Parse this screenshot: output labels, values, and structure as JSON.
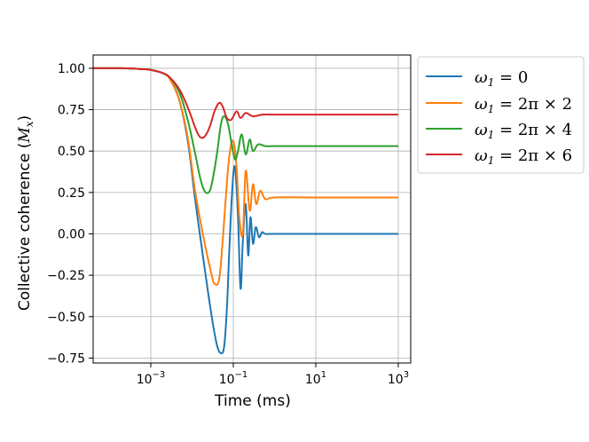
{
  "chart_data": {
    "type": "line",
    "xlabel": "Time (ms)",
    "ylabel": "Collective coherence (",
    "ylabel_var": "M",
    "ylabel_sub": "x",
    "ylabel_close": ")",
    "x_scale": "log",
    "xlim": [
      4e-05,
      2000
    ],
    "ylim": [
      -0.78,
      1.08
    ],
    "x_ticks": [
      {
        "value": 0.001,
        "base": "10",
        "exp": "−3"
      },
      {
        "value": 0.1,
        "base": "10",
        "exp": "−1"
      },
      {
        "value": 10,
        "base": "10",
        "exp": "1"
      },
      {
        "value": 1000,
        "base": "10",
        "exp": "3"
      }
    ],
    "y_ticks": [
      {
        "value": -0.75,
        "label": "−0.75"
      },
      {
        "value": -0.5,
        "label": "−0.50"
      },
      {
        "value": -0.25,
        "label": "−0.25"
      },
      {
        "value": 0.0,
        "label": "0.00"
      },
      {
        "value": 0.25,
        "label": "0.25"
      },
      {
        "value": 0.5,
        "label": "0.50"
      },
      {
        "value": 0.75,
        "label": "0.75"
      },
      {
        "value": 1.0,
        "label": "1.00"
      }
    ],
    "grid": true,
    "legend_position": "outside-top-right",
    "series": [
      {
        "legend_var": "ω",
        "legend_sub": "1",
        "legend_rest": " = 0",
        "color": "#1f77b4",
        "x": [
          4e-05,
          0.0002,
          0.0006,
          0.001,
          0.002,
          0.003,
          0.005,
          0.008,
          0.012,
          0.02,
          0.03,
          0.04,
          0.05,
          0.06,
          0.07,
          0.08,
          0.095,
          0.11,
          0.13,
          0.15,
          0.17,
          0.2,
          0.23,
          0.26,
          0.3,
          0.35,
          0.42,
          0.5,
          0.6,
          1,
          10,
          100,
          1000
        ],
        "y": [
          1.0,
          1.0,
          0.995,
          0.99,
          0.97,
          0.93,
          0.8,
          0.55,
          0.2,
          -0.2,
          -0.5,
          -0.67,
          -0.72,
          -0.68,
          -0.45,
          -0.1,
          0.28,
          0.4,
          0.1,
          -0.33,
          -0.05,
          0.18,
          -0.13,
          0.1,
          -0.06,
          0.04,
          -0.02,
          0.01,
          0.0,
          0.0,
          0.0,
          0.0,
          0.0
        ]
      },
      {
        "legend_var": "ω",
        "legend_sub": "1",
        "legend_rest": " = 2π × 2",
        "color": "#ff7f0e",
        "x": [
          4e-05,
          0.0002,
          0.0006,
          0.001,
          0.002,
          0.003,
          0.005,
          0.008,
          0.012,
          0.02,
          0.03,
          0.035,
          0.045,
          0.055,
          0.065,
          0.08,
          0.1,
          0.12,
          0.14,
          0.17,
          0.2,
          0.25,
          0.3,
          0.36,
          0.45,
          0.6,
          1,
          10,
          100,
          1000
        ],
        "y": [
          1.0,
          1.0,
          0.995,
          0.99,
          0.97,
          0.93,
          0.8,
          0.57,
          0.25,
          -0.05,
          -0.25,
          -0.3,
          -0.28,
          -0.05,
          0.2,
          0.47,
          0.56,
          0.4,
          0.1,
          0.0,
          0.38,
          0.14,
          0.3,
          0.18,
          0.26,
          0.21,
          0.22,
          0.22,
          0.22,
          0.22
        ]
      },
      {
        "legend_var": "ω",
        "legend_sub": "1",
        "legend_rest": " = 2π × 4",
        "color": "#2ca02c",
        "x": [
          4e-05,
          0.0002,
          0.0006,
          0.001,
          0.002,
          0.003,
          0.005,
          0.008,
          0.012,
          0.016,
          0.02,
          0.025,
          0.03,
          0.04,
          0.05,
          0.06,
          0.075,
          0.09,
          0.11,
          0.13,
          0.16,
          0.2,
          0.25,
          0.3,
          0.4,
          0.6,
          1,
          10,
          100,
          1000
        ],
        "y": [
          1.0,
          1.0,
          0.995,
          0.99,
          0.97,
          0.94,
          0.85,
          0.68,
          0.48,
          0.33,
          0.26,
          0.25,
          0.3,
          0.48,
          0.66,
          0.71,
          0.66,
          0.55,
          0.45,
          0.5,
          0.6,
          0.48,
          0.57,
          0.5,
          0.54,
          0.53,
          0.53,
          0.53,
          0.53,
          0.53
        ]
      },
      {
        "legend_var": "ω",
        "legend_sub": "1",
        "legend_rest": " = 2π × 6",
        "color": "#d62728",
        "x": [
          4e-05,
          0.0002,
          0.0006,
          0.001,
          0.002,
          0.003,
          0.005,
          0.008,
          0.012,
          0.015,
          0.018,
          0.022,
          0.028,
          0.035,
          0.045,
          0.055,
          0.07,
          0.09,
          0.12,
          0.15,
          0.2,
          0.3,
          0.5,
          1,
          10,
          100,
          1000
        ],
        "y": [
          1.0,
          1.0,
          0.995,
          0.99,
          0.97,
          0.94,
          0.87,
          0.76,
          0.64,
          0.59,
          0.58,
          0.6,
          0.66,
          0.74,
          0.79,
          0.77,
          0.7,
          0.69,
          0.74,
          0.7,
          0.73,
          0.71,
          0.72,
          0.72,
          0.72,
          0.72,
          0.72
        ]
      }
    ]
  }
}
